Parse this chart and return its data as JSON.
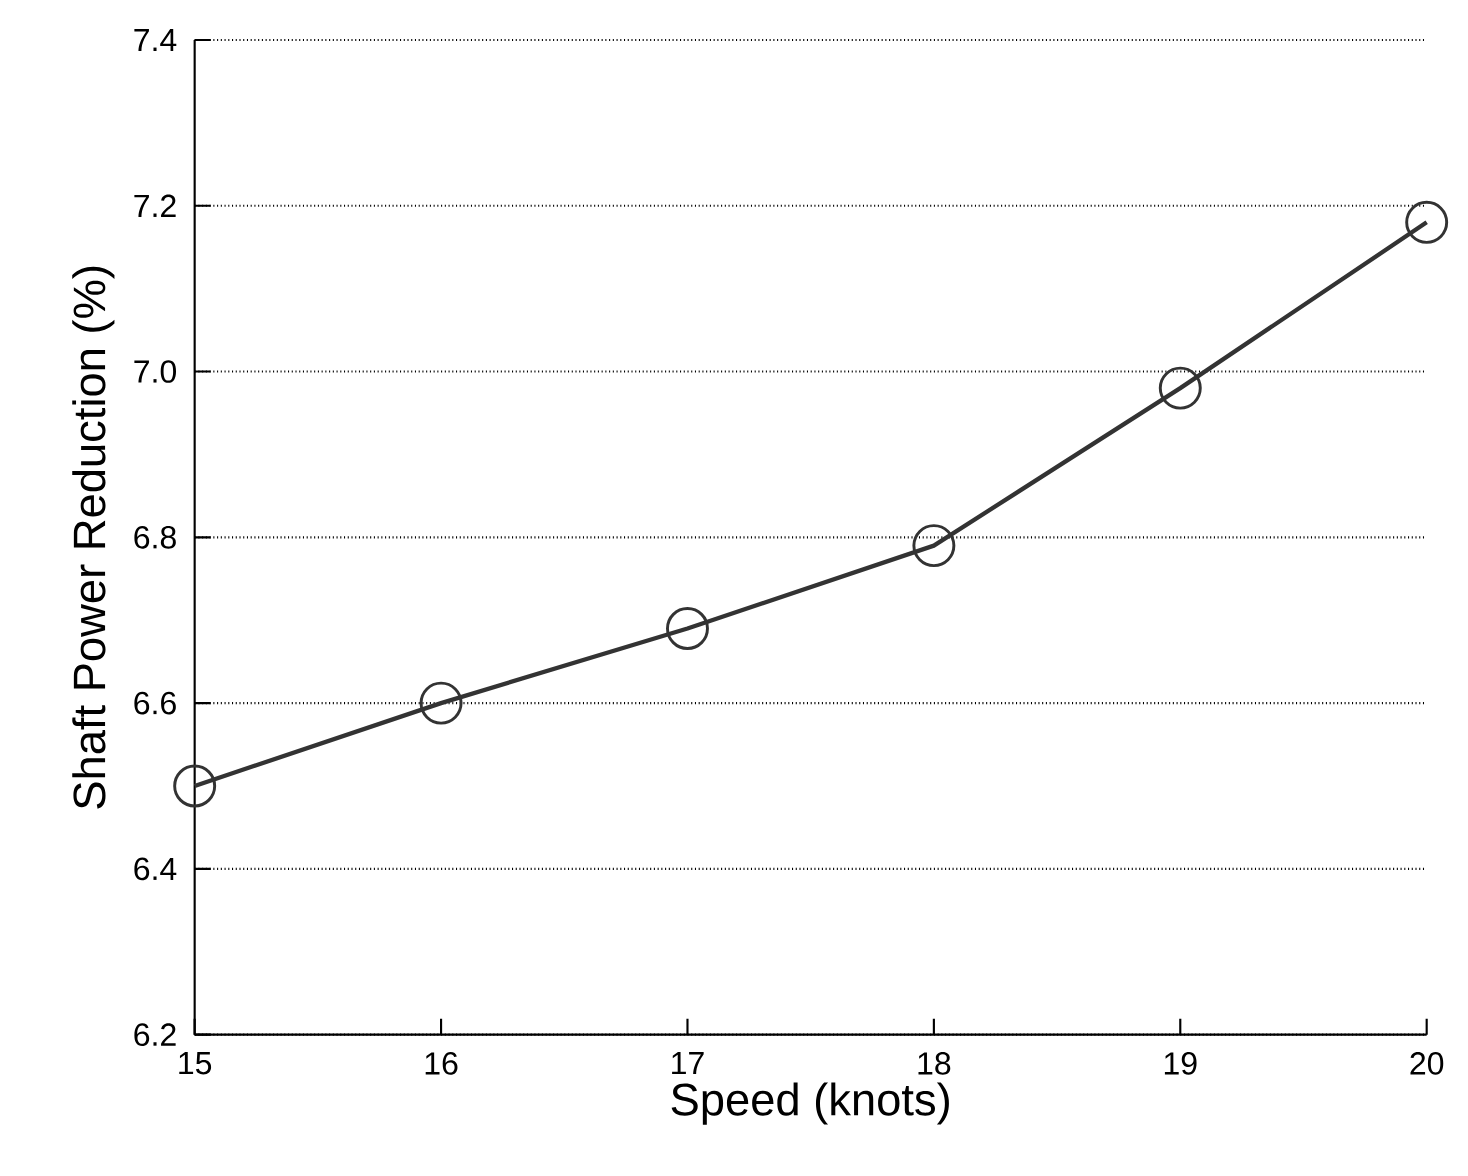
{
  "chart_data": {
    "type": "line",
    "xlabel": "Speed (knots)",
    "ylabel": "Shaft Power Reduction (%)",
    "x": [
      15,
      16,
      17,
      18,
      19,
      20
    ],
    "series": [
      {
        "color": "#333333",
        "values": [
          6.5,
          6.6,
          6.69,
          6.79,
          6.98,
          7.18
        ]
      }
    ],
    "xlim": [
      15,
      20
    ],
    "xticks": [
      15,
      16,
      17,
      18,
      19,
      20
    ],
    "ylim": [
      6.2,
      7.4
    ],
    "yticks": [
      6.2,
      6.4,
      6.6,
      6.8,
      {
        "value": 7.0,
        "label": "7.0"
      },
      7.2,
      7.4
    ],
    "grid": "y",
    "marker": "circle",
    "line_style": "solid"
  }
}
